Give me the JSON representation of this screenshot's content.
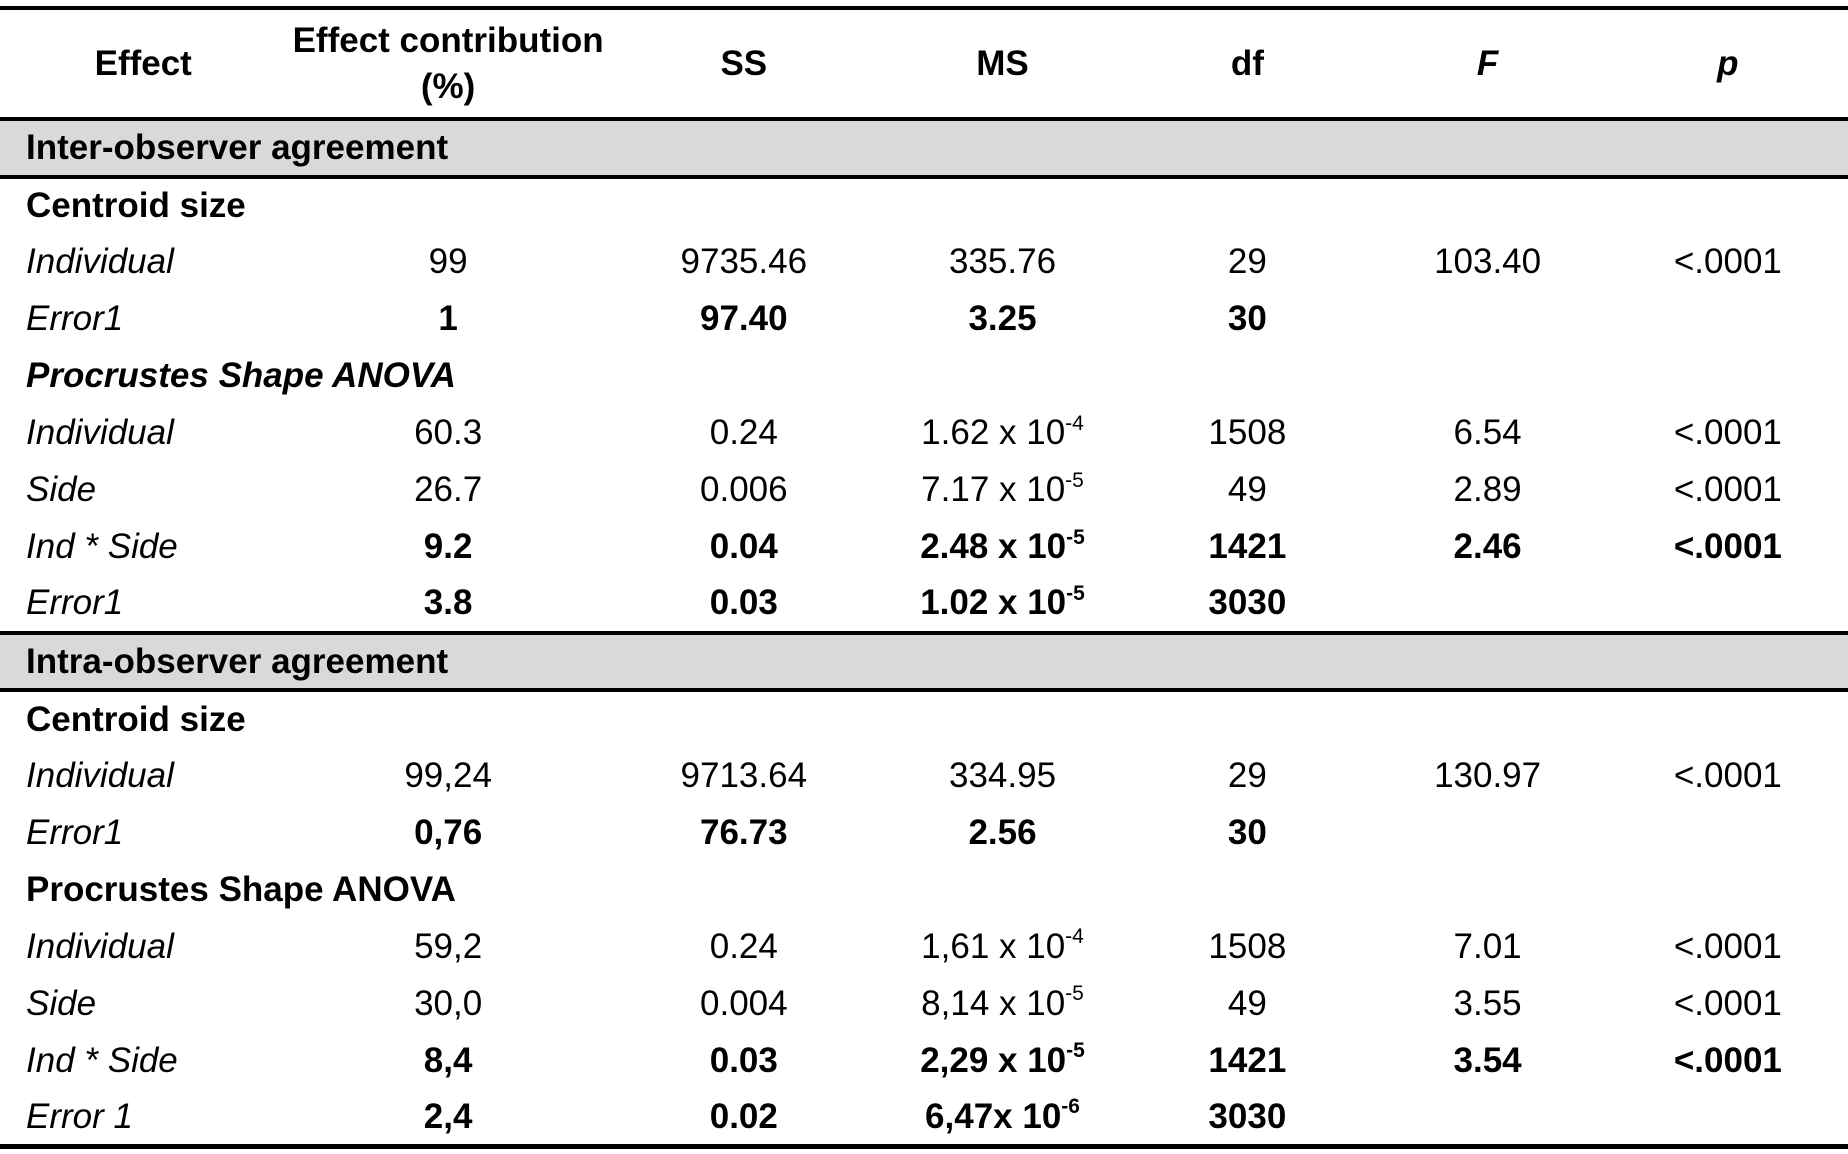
{
  "colors": {
    "band_background": "#d9d9d9",
    "border": "#000000",
    "text": "#000000"
  },
  "header": {
    "effect": "Effect",
    "contribution": "Effect contribution (%)",
    "ss": "SS",
    "ms": "MS",
    "df": "df",
    "f": "F",
    "p": "p"
  },
  "rows": [
    {
      "kind": "band",
      "label": "Inter-observer agreement"
    },
    {
      "kind": "subheader",
      "label": "Centroid size"
    },
    {
      "kind": "data",
      "label": "Individual",
      "contribution": "99",
      "ss": "9735.46",
      "ms": "335.76",
      "df": "29",
      "f": "103.40",
      "p": "<.0001"
    },
    {
      "kind": "data-bold",
      "label": "Error1",
      "contribution": "1",
      "ss": "97.40",
      "ms": "3.25",
      "df": "30"
    },
    {
      "kind": "subheader-italic",
      "label": "Procrustes Shape ANOVA"
    },
    {
      "kind": "data",
      "label": "Individual",
      "contribution": "60.3",
      "ss": "0.24",
      "ms": "1.62 x 10",
      "ms_exp": "-4",
      "df": "1508",
      "f": "6.54",
      "p": "<.0001"
    },
    {
      "kind": "data",
      "label": "Side",
      "contribution": "26.7",
      "ss": "0.006",
      "ms": "7.17 x 10",
      "ms_exp": "-5",
      "df": "49",
      "f": "2.89",
      "p": "<.0001"
    },
    {
      "kind": "data-bold",
      "label": "Ind * Side",
      "contribution": "9.2",
      "ss": "0.04",
      "ms": "2.48 x 10",
      "ms_exp": "-5",
      "df": "1421",
      "f": "2.46",
      "p": "<.0001"
    },
    {
      "kind": "data-bold",
      "label": "Error1",
      "contribution": "3.8",
      "ss": "0.03",
      "ms": "1.02 x 10",
      "ms_exp": "-5",
      "df": "3030"
    },
    {
      "kind": "band",
      "label": "Intra-observer agreement"
    },
    {
      "kind": "subheader",
      "label": "Centroid size"
    },
    {
      "kind": "data",
      "label": "Individual",
      "contribution": "99,24",
      "ss": "9713.64",
      "ms": "334.95",
      "df": "29",
      "f": "130.97",
      "p": "<.0001"
    },
    {
      "kind": "data-bold",
      "label": "Error1",
      "contribution": "0,76",
      "ss": "76.73",
      "ms": "2.56",
      "df": "30"
    },
    {
      "kind": "subheader",
      "label": "Procrustes Shape ANOVA"
    },
    {
      "kind": "data",
      "label": "Individual",
      "contribution": "59,2",
      "ss": "0.24",
      "ms": "1,61 x 10",
      "ms_exp": "-4",
      "df": "1508",
      "f": "7.01",
      "p": "<.0001"
    },
    {
      "kind": "data",
      "label": "Side",
      "contribution": "30,0",
      "ss": "0.004",
      "ms": "8,14 x 10",
      "ms_exp": "-5",
      "df": "49",
      "f": "3.55",
      "p": "<.0001"
    },
    {
      "kind": "data-bold",
      "label": "Ind * Side",
      "contribution": "8,4",
      "ss": "0.03",
      "ms": "2,29 x 10",
      "ms_exp": "-5",
      "df": "1421",
      "f": "3.54",
      "p": "<.0001"
    },
    {
      "kind": "data-bold",
      "label": "Error 1",
      "contribution": "2,4",
      "ss": "0.02",
      "ms": "6,47x 10",
      "ms_exp": "-6",
      "df": "3030"
    }
  ]
}
